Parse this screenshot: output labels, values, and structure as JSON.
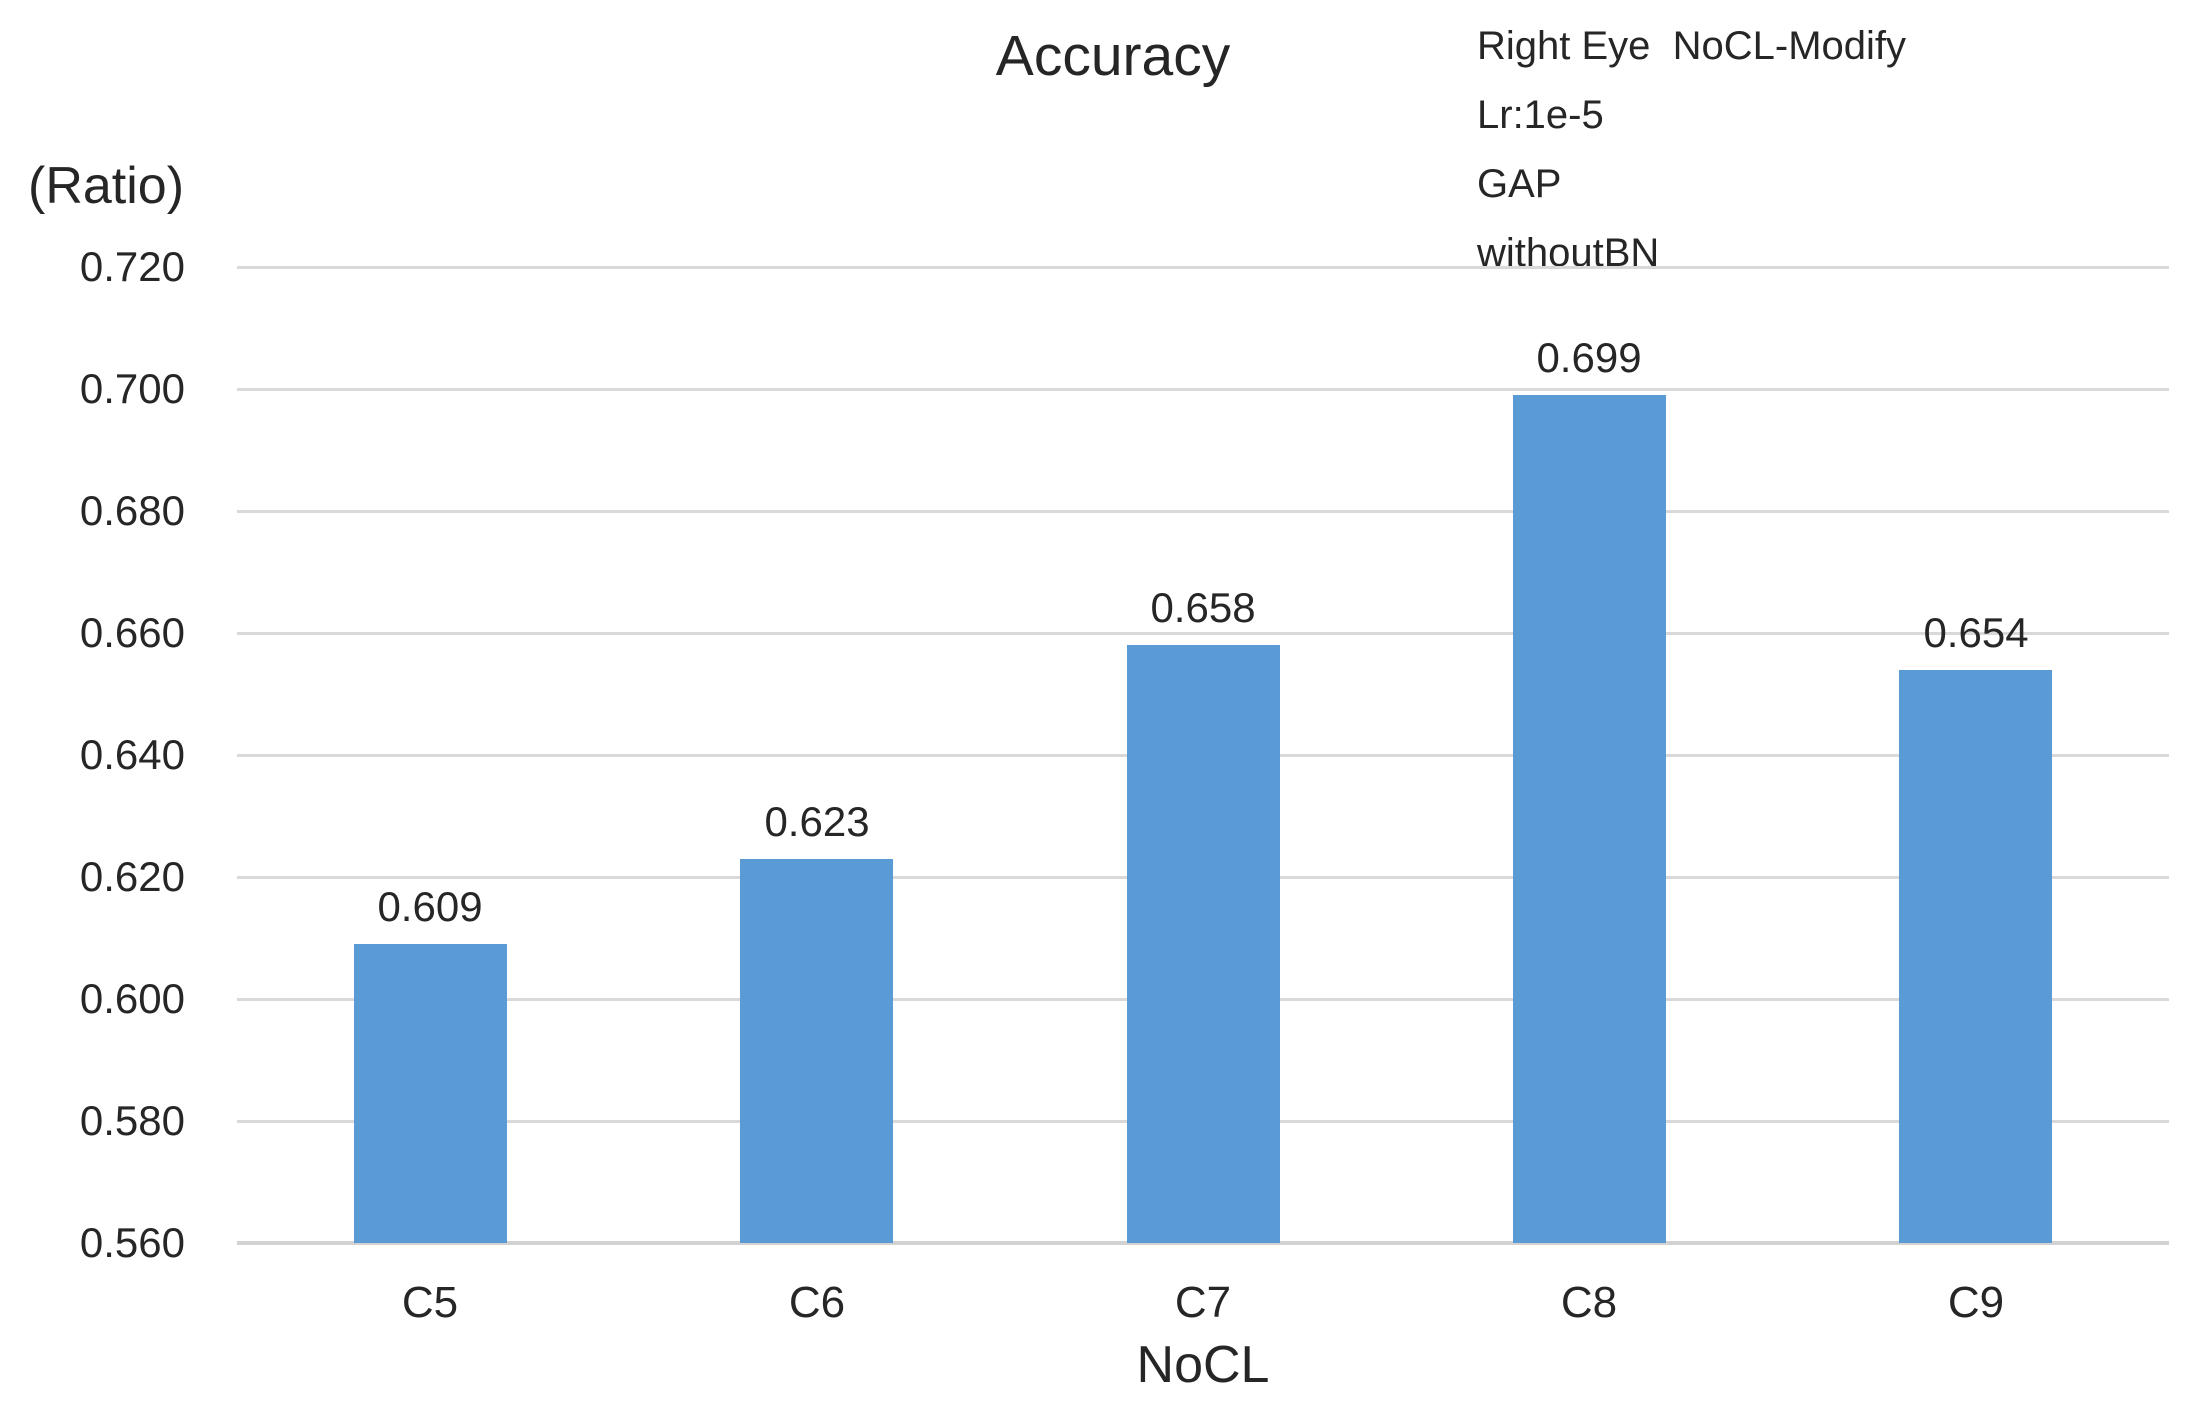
{
  "chart_data": {
    "type": "bar",
    "title": "Accuracy",
    "categories": [
      "C5",
      "C6",
      "C7",
      "C8",
      "C9"
    ],
    "values": [
      0.609,
      0.623,
      0.658,
      0.699,
      0.654
    ],
    "value_labels": [
      "0.609",
      "0.623",
      "0.658",
      "0.699",
      "0.654"
    ],
    "xlabel": "NoCL",
    "ylabel": "(Ratio)",
    "ylim": [
      0.56,
      0.72
    ],
    "ytick_step": 0.02,
    "yticks": [
      "0.720",
      "0.700",
      "0.680",
      "0.660",
      "0.640",
      "0.620",
      "0.600",
      "0.580",
      "0.560"
    ],
    "grid": "horizontal-only",
    "legend": "none",
    "annotation_lines": [
      "Right Eye  NoCL-Modify",
      "Lr:1e-5",
      "GAP",
      "withoutBN"
    ],
    "bar_color": "#5b9bd5",
    "gridline_color": "#d9d9d9",
    "axis_line_color": "#d2d2d2",
    "text_color": "#262626"
  }
}
